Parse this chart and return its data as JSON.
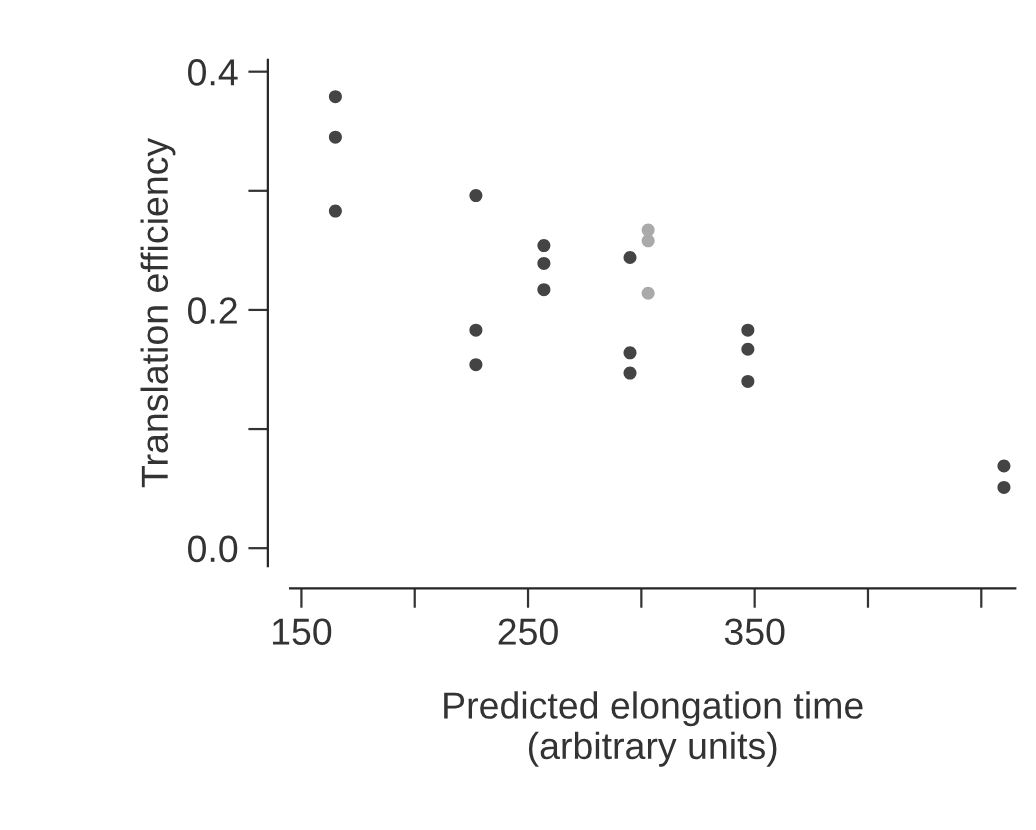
{
  "chart_data": {
    "type": "scatter",
    "xlabel": "Predicted elongation time\n(arbitrary units)",
    "ylabel": "Translation efficiency",
    "series": [
      {
        "color": "#444444",
        "x": [
          165,
          165,
          165,
          227,
          227,
          227,
          257,
          257,
          257,
          295,
          295,
          295,
          347,
          347,
          347,
          460,
          460
        ],
        "values": [
          0.379,
          0.345,
          0.283,
          0.296,
          0.183,
          0.154,
          0.254,
          0.239,
          0.217,
          0.244,
          0.164,
          0.147,
          0.183,
          0.167,
          0.14,
          0.069,
          0.051
        ]
      },
      {
        "color": "#aaaaaa",
        "x": [
          303,
          303,
          303
        ],
        "values": [
          0.267,
          0.258,
          0.214
        ]
      }
    ],
    "xlim": [
      145,
      465
    ],
    "xticks": [
      150,
      {
        "value": 200,
        "label": null
      },
      250,
      {
        "value": 300,
        "label": null
      },
      350,
      {
        "value": 400,
        "label": null
      },
      {
        "value": 450,
        "label": null
      }
    ],
    "ylim": [
      -0.015,
      0.41
    ],
    "yticks": [
      "0.0",
      {
        "value": 0.1,
        "label": null
      },
      {
        "value": 0.2,
        "label": "0.2"
      },
      {
        "value": 0.3,
        "label": null
      },
      {
        "value": 0.4,
        "label": "0.4"
      }
    ],
    "marker": "circle",
    "grid": false,
    "legend": false
  }
}
